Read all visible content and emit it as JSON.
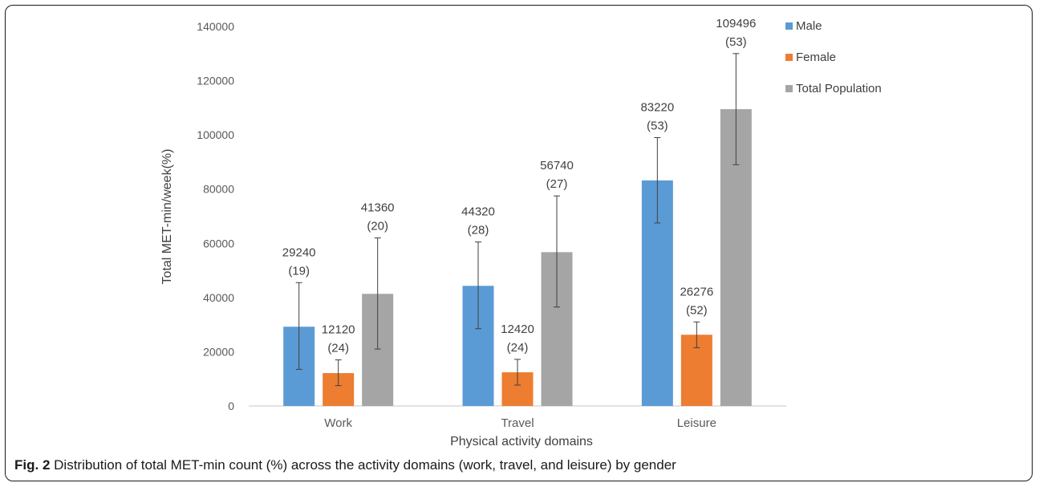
{
  "chart_data": {
    "type": "bar",
    "categories": [
      "Work",
      "Travel",
      "Leisure"
    ],
    "series": [
      {
        "name": "Male",
        "color": "#5B9BD5",
        "values": [
          29240,
          44320,
          83220
        ],
        "percent_labels": [
          "(19)",
          "(28)",
          "(53)"
        ],
        "error_low": [
          13500,
          28500,
          67500
        ],
        "error_high": [
          45500,
          60500,
          99000
        ]
      },
      {
        "name": "Female",
        "color": "#ED7D31",
        "values": [
          12120,
          12420,
          26276
        ],
        "percent_labels": [
          "(24)",
          "(24)",
          "(52)"
        ],
        "error_low": [
          7500,
          7700,
          21500
        ],
        "error_high": [
          17000,
          17200,
          31000
        ]
      },
      {
        "name": "Total Population",
        "color": "#A5A5A5",
        "values": [
          41360,
          56740,
          109496
        ],
        "percent_labels": [
          "(20)",
          "(27)",
          "(53)"
        ],
        "error_low": [
          21000,
          36500,
          89000
        ],
        "error_high": [
          62000,
          77500,
          130000
        ]
      }
    ],
    "value_labels": [
      [
        "29240",
        "44320",
        "83220"
      ],
      [
        "12120",
        "12420",
        "26276"
      ],
      [
        "41360",
        "56740",
        "109496"
      ]
    ],
    "ylim": [
      0,
      140000
    ],
    "yticks": [
      "0",
      "20000",
      "40000",
      "60000",
      "80000",
      "100000",
      "120000",
      "140000"
    ],
    "ytick_values": [
      0,
      20000,
      40000,
      60000,
      80000,
      100000,
      120000,
      140000
    ],
    "xlabel": "Physical activity domains",
    "ylabel": "Total MET-min/week(%)",
    "grid": false,
    "legend_position": "top-right"
  },
  "caption": {
    "label": "Fig. 2",
    "text": "Distribution of total MET-min count (%) across the activity domains (work, travel, and leisure) by gender"
  }
}
